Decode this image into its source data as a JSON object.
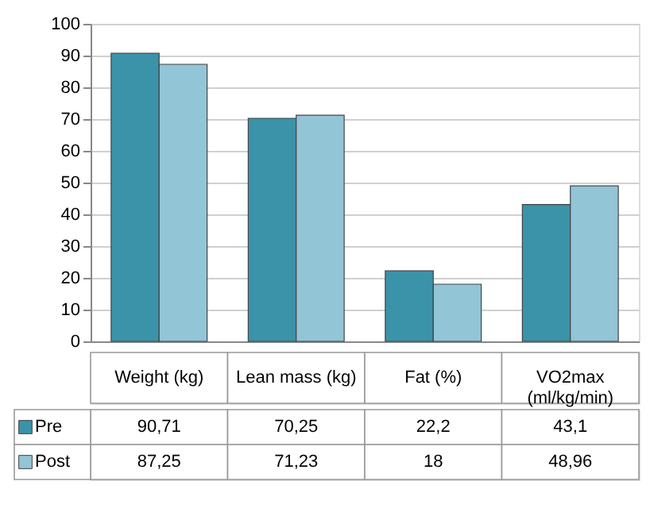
{
  "chart_data": {
    "type": "bar",
    "categories": [
      "Weight (kg)",
      "Lean mass (kg)",
      "Fat (%)",
      "VO2max (ml/kg/min)"
    ],
    "series": [
      {
        "name": "Pre",
        "color": "#3a93a8",
        "values": [
          90.71,
          70.25,
          22.2,
          43.1
        ],
        "value_labels": [
          "90,71",
          "70,25",
          "22,2",
          "43,1"
        ]
      },
      {
        "name": "Post",
        "color": "#92c5d6",
        "values": [
          87.25,
          71.23,
          18,
          48.96
        ],
        "value_labels": [
          "87,25",
          "71,23",
          "18",
          "48,96"
        ]
      }
    ],
    "ylim": [
      0,
      100
    ],
    "yticks": [
      0,
      10,
      20,
      30,
      40,
      50,
      60,
      70,
      80,
      90,
      100
    ],
    "grid": "y",
    "legend": "bottom"
  }
}
